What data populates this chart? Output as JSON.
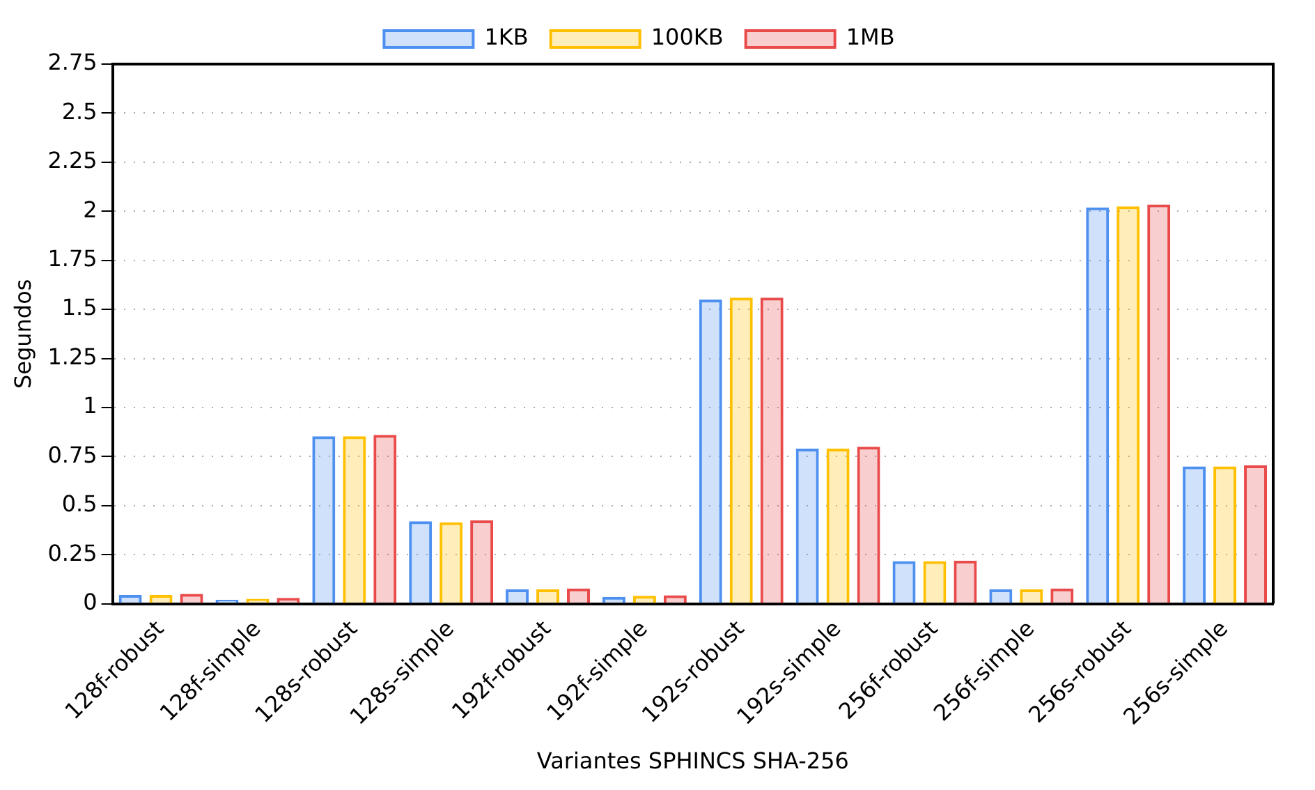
{
  "chart_data": {
    "type": "bar",
    "xlabel": "Variantes SPHINCS SHA-256",
    "ylabel": "Segundos",
    "categories": [
      "128f-robust",
      "128f-simple",
      "128s-robust",
      "128s-simple",
      "192f-robust",
      "192f-simple",
      "192s-robust",
      "192s-simple",
      "256f-robust",
      "256f-simple",
      "256s-robust",
      "256s-simple"
    ],
    "series": [
      {
        "name": "1KB",
        "color": "#4d90f0",
        "values": [
          0.045,
          0.02,
          0.853,
          0.42,
          0.073,
          0.035,
          1.55,
          0.79,
          0.217,
          0.073,
          2.02,
          0.7
        ]
      },
      {
        "name": "100KB",
        "color": "#ffc000",
        "values": [
          0.045,
          0.025,
          0.853,
          0.415,
          0.073,
          0.04,
          1.56,
          0.79,
          0.217,
          0.073,
          2.025,
          0.7
        ]
      },
      {
        "name": "1MB",
        "color": "#e94a4a",
        "values": [
          0.05,
          0.03,
          0.86,
          0.425,
          0.078,
          0.043,
          1.56,
          0.8,
          0.22,
          0.078,
          2.035,
          0.705
        ]
      }
    ],
    "ylim": [
      0,
      2.75
    ],
    "yticks": [
      0,
      0.25,
      0.5,
      0.75,
      1,
      1.25,
      1.5,
      1.75,
      2,
      2.25,
      2.5,
      2.75
    ],
    "grid": "y",
    "legend": "top"
  }
}
